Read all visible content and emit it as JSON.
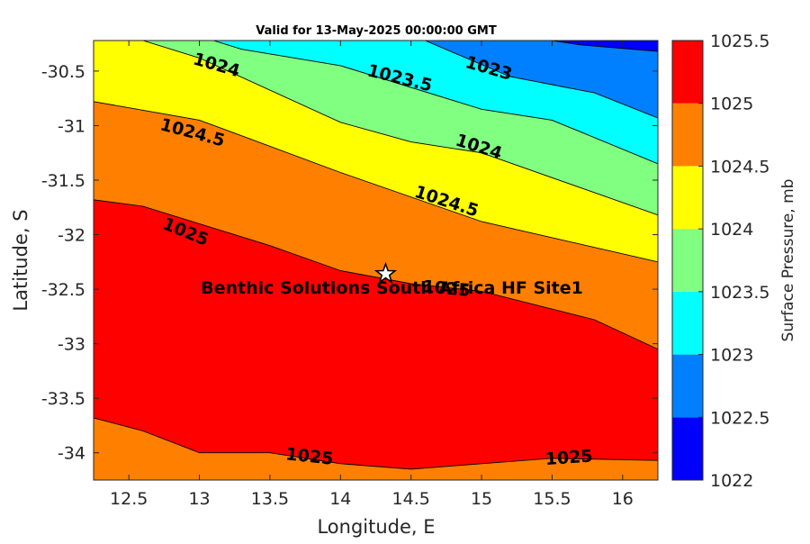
{
  "chart_data": {
    "type": "contour",
    "title": "Valid for 13-May-2025 00:00:00 GMT",
    "xlabel": "Longitude, E",
    "ylabel": "Latitude, S",
    "colorbar_label": "Surface Pressure, mb",
    "xlim": [
      12.25,
      16.25
    ],
    "ylim": [
      -34.25,
      -30.22
    ],
    "xticks": [
      12.5,
      13,
      13.5,
      14,
      14.5,
      15,
      15.5,
      16
    ],
    "xtick_labels": [
      "12.5",
      "13",
      "13.5",
      "14",
      "14.5",
      "15",
      "15.5",
      "16"
    ],
    "yticks": [
      -30.5,
      -31,
      -31.5,
      -32,
      -32.5,
      -33,
      -33.5,
      -34
    ],
    "ytick_labels": [
      "-30.5",
      "-31",
      "-31.5",
      "-32",
      "-32.5",
      "-33",
      "-33.5",
      "-34"
    ],
    "colorbar": {
      "levels": [
        1022,
        1022.5,
        1023,
        1023.5,
        1024,
        1024.5,
        1025,
        1025.5
      ],
      "tick_labels": [
        "1022",
        "1022.5",
        "1023",
        "1023.5",
        "1024",
        "1024.5",
        "1025",
        "1025.5"
      ],
      "colors": [
        "#0000ff",
        "#0080ff",
        "#00ffff",
        "#80ff80",
        "#ffff00",
        "#ff8000",
        "#ff0000",
        "#800000"
      ]
    },
    "contours": [
      {
        "level": 1022.5,
        "points": [
          [
            15.5,
            -30.22
          ],
          [
            15.7,
            -30.26
          ],
          [
            16.25,
            -30.32
          ]
        ]
      },
      {
        "level": 1023,
        "points": [
          [
            14.6,
            -30.22
          ],
          [
            15.2,
            -30.55
          ],
          [
            15.8,
            -30.7
          ],
          [
            16.25,
            -30.93
          ]
        ]
      },
      {
        "level": 1023.5,
        "points": [
          [
            13.1,
            -30.22
          ],
          [
            13.3,
            -30.3
          ],
          [
            14.0,
            -30.45
          ],
          [
            15.0,
            -30.85
          ],
          [
            15.5,
            -30.95
          ],
          [
            16.25,
            -31.35
          ]
        ]
      },
      {
        "level": 1024,
        "points": [
          [
            12.6,
            -30.22
          ],
          [
            13.0,
            -30.38
          ],
          [
            14.0,
            -30.97
          ],
          [
            14.5,
            -31.15
          ],
          [
            15.0,
            -31.25
          ],
          [
            16.25,
            -31.82
          ]
        ]
      },
      {
        "level": 1024.5,
        "points": [
          [
            12.25,
            -30.78
          ],
          [
            13.0,
            -30.95
          ],
          [
            14.0,
            -31.43
          ],
          [
            15.0,
            -31.88
          ],
          [
            16.25,
            -32.25
          ]
        ]
      },
      {
        "level": 1025,
        "points": [
          [
            12.25,
            -31.68
          ],
          [
            12.6,
            -31.74
          ],
          [
            13.5,
            -32.1
          ],
          [
            14.0,
            -32.33
          ],
          [
            14.5,
            -32.45
          ],
          [
            15.0,
            -32.52
          ],
          [
            15.8,
            -32.78
          ],
          [
            16.25,
            -33.05
          ]
        ]
      },
      {
        "level": 1025,
        "points": [
          [
            12.25,
            -33.68
          ],
          [
            12.6,
            -33.8
          ],
          [
            13.0,
            -34.0
          ],
          [
            13.5,
            -34.0
          ],
          [
            14.0,
            -34.1
          ],
          [
            14.5,
            -34.15
          ],
          [
            15.0,
            -34.1
          ],
          [
            15.5,
            -34.05
          ],
          [
            16.25,
            -34.07
          ]
        ]
      }
    ],
    "contour_labels": [
      {
        "text": "1024",
        "x": 13.12,
        "y": -30.45,
        "angle": 16
      },
      {
        "text": "1023.5",
        "x": 14.42,
        "y": -30.57,
        "angle": 14
      },
      {
        "text": "1023",
        "x": 15.05,
        "y": -30.48,
        "angle": 16
      },
      {
        "text": "1024.5",
        "x": 12.95,
        "y": -31.07,
        "angle": 15
      },
      {
        "text": "1024",
        "x": 14.98,
        "y": -31.2,
        "angle": 18
      },
      {
        "text": "1024.5",
        "x": 14.75,
        "y": -31.7,
        "angle": 18
      },
      {
        "text": "1025",
        "x": 12.9,
        "y": -31.98,
        "angle": 22
      },
      {
        "text": "1025",
        "x": 14.75,
        "y": -32.5,
        "angle": 5
      },
      {
        "text": "1025",
        "x": 13.78,
        "y": -34.04,
        "angle": 6
      },
      {
        "text": "1025",
        "x": 15.62,
        "y": -34.05,
        "angle": -4
      }
    ],
    "site": {
      "name": "Benthic Solutions South Africa HF Site1",
      "lon": 14.32,
      "lat": -32.36
    }
  }
}
